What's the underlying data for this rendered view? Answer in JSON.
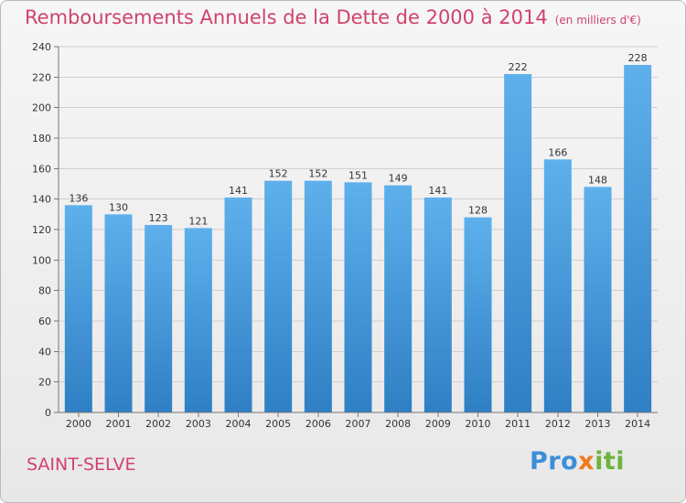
{
  "chart_data": {
    "type": "bar",
    "title": "Remboursements Annuels de la Dette de 2000 à 2014",
    "unit": "(en milliers d'€)",
    "categories": [
      "2000",
      "2001",
      "2002",
      "2003",
      "2004",
      "2005",
      "2006",
      "2007",
      "2008",
      "2009",
      "2010",
      "2011",
      "2012",
      "2013",
      "2014"
    ],
    "values": [
      136,
      130,
      123,
      121,
      141,
      152,
      152,
      151,
      149,
      141,
      128,
      222,
      166,
      148,
      228
    ],
    "ylim": [
      0,
      240
    ],
    "yticks": [
      0,
      20,
      40,
      60,
      80,
      100,
      120,
      140,
      160,
      180,
      200,
      220,
      240
    ],
    "grid": true,
    "bar_color": "#4a9de0"
  },
  "location": "SAINT-SELVE",
  "logo": {
    "part1": "Pro",
    "part2": "x",
    "part3": "iti"
  }
}
